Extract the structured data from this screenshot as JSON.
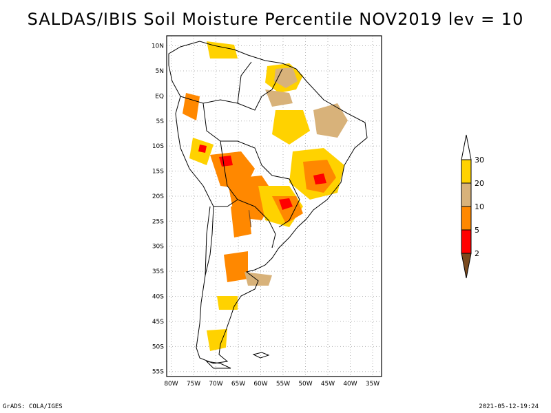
{
  "title": "SALDAS/IBIS Soil Moisture Percentile NOV2019 lev = 10",
  "footer": {
    "left": "GrADS: COLA/IGES",
    "right": "2021-05-12-19:24"
  },
  "map": {
    "lat_labels": [
      "10N",
      "5N",
      "EQ",
      "5S",
      "10S",
      "15S",
      "20S",
      "25S",
      "30S",
      "35S",
      "40S",
      "45S",
      "50S",
      "55S"
    ],
    "lon_labels": [
      "80W",
      "75W",
      "70W",
      "65W",
      "60W",
      "55W",
      "50W",
      "45W",
      "40W",
      "35W"
    ],
    "lat_values": [
      10,
      5,
      0,
      -5,
      -10,
      -15,
      -20,
      -25,
      -30,
      -35,
      -40,
      -45,
      -50,
      -55
    ],
    "lon_values": [
      -80,
      -75,
      -70,
      -65,
      -60,
      -55,
      -50,
      -45,
      -40,
      -35
    ],
    "extent": {
      "lon_min": -81,
      "lon_max": -33,
      "lat_min": -56,
      "lat_max": 12
    }
  },
  "legend": {
    "labels": [
      "2",
      "5",
      "10",
      "20",
      "30"
    ],
    "colors": {
      "below_2": "#7a4a1e",
      "2_5": "#ff0000",
      "5_10": "#ff8800",
      "10_20": "#d8b27a",
      "20_30": "#ffd200",
      "above_30": "#ffffff"
    }
  },
  "colors": {
    "coast": "#000000",
    "grid": "#b0b0b0"
  }
}
